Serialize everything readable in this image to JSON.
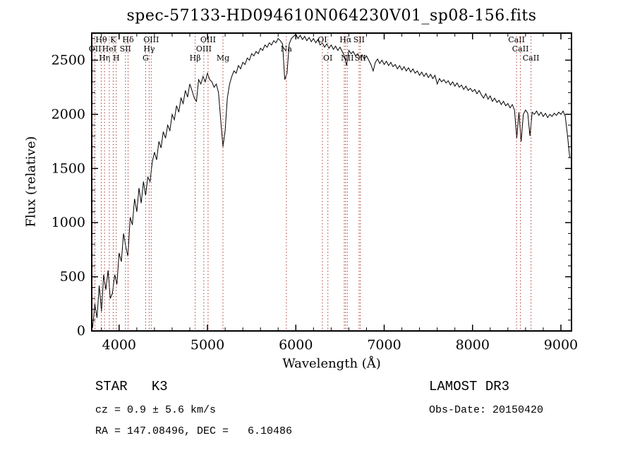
{
  "title": "spec-57133-HD094610N064230V01_sp08-156.fits",
  "footer": {
    "classification": "STAR   K3",
    "survey": "LAMOST DR3",
    "cz": "cz = 0.9 ± 5.6 km/s",
    "obs_date": "Obs-Date: 20150420",
    "ra_dec": "RA = 147.08496, DEC =   6.10486"
  },
  "chart_data": {
    "type": "line",
    "title": "spec-57133-HD094610N064230V01_sp08-156.fits",
    "xlabel": "Wavelength (Å)",
    "ylabel": "Flux (relative)",
    "xlim": [
      3690,
      9120
    ],
    "ylim": [
      0,
      2750
    ],
    "x_ticks": [
      4000,
      5000,
      6000,
      7000,
      8000,
      9000
    ],
    "y_ticks": [
      0,
      500,
      1000,
      1500,
      2000,
      2500
    ],
    "x_minor_step": 200,
    "y_minor_step": 100,
    "grid": false,
    "legend": "none",
    "line_color": "#000000",
    "marker_color": "#aa3939",
    "x_start": 3700,
    "x_step": 25,
    "flux": [
      30,
      250,
      120,
      420,
      180,
      520,
      380,
      560,
      300,
      350,
      520,
      430,
      720,
      640,
      900,
      780,
      690,
      1050,
      980,
      1220,
      1100,
      1320,
      1180,
      1380,
      1250,
      1420,
      1380,
      1560,
      1650,
      1580,
      1750,
      1690,
      1840,
      1780,
      1900,
      1850,
      2000,
      1950,
      2080,
      2020,
      2150,
      2100,
      2220,
      2160,
      2280,
      2220,
      2150,
      2120,
      2320,
      2280,
      2350,
      2300,
      2380,
      2320,
      2300,
      2250,
      2280,
      2200,
      1950,
      1700,
      1850,
      2150,
      2280,
      2350,
      2400,
      2380,
      2450,
      2420,
      2480,
      2460,
      2520,
      2500,
      2560,
      2540,
      2580,
      2560,
      2610,
      2590,
      2640,
      2620,
      2660,
      2640,
      2680,
      2660,
      2700,
      2680,
      2650,
      2320,
      2380,
      2650,
      2700,
      2720,
      2740,
      2700,
      2730,
      2690,
      2720,
      2680,
      2710,
      2670,
      2700,
      2660,
      2690,
      2640,
      2660,
      2620,
      2650,
      2610,
      2640,
      2600,
      2630,
      2590,
      2620,
      2580,
      2540,
      2450,
      2590,
      2560,
      2580,
      2540,
      2560,
      2520,
      2550,
      2510,
      2540,
      2500,
      2460,
      2400,
      2480,
      2510,
      2470,
      2500,
      2460,
      2490,
      2450,
      2480,
      2440,
      2460,
      2420,
      2450,
      2410,
      2440,
      2400,
      2430,
      2390,
      2420,
      2380,
      2400,
      2360,
      2390,
      2350,
      2380,
      2340,
      2370,
      2330,
      2360,
      2280,
      2330,
      2300,
      2320,
      2290,
      2310,
      2270,
      2300,
      2260,
      2290,
      2250,
      2270,
      2230,
      2260,
      2220,
      2240,
      2210,
      2230,
      2190,
      2220,
      2180,
      2150,
      2190,
      2140,
      2170,
      2120,
      2150,
      2110,
      2130,
      2090,
      2120,
      2080,
      2100,
      2060,
      2090,
      2040,
      1780,
      2020,
      1750,
      2000,
      2040,
      2010,
      1800,
      2020,
      2000,
      2030,
      1990,
      2020,
      1980,
      2010,
      1970,
      2000,
      1980,
      2010,
      1990,
      2020,
      2000,
      2030,
      1980,
      1800,
      1600
    ],
    "line_markers": [
      {
        "label": "OII",
        "wavelength": 3727,
        "row": 2
      },
      {
        "label": "Hθ",
        "wavelength": 3798,
        "row": 1
      },
      {
        "label": "Hη",
        "wavelength": 3835,
        "row": 3
      },
      {
        "label": "HeI",
        "wavelength": 3889,
        "row": 2
      },
      {
        "label": "K",
        "wavelength": 3933,
        "row": 1
      },
      {
        "label": "H",
        "wavelength": 3968,
        "row": 3
      },
      {
        "label": "SII",
        "wavelength": 4072,
        "row": 2
      },
      {
        "label": "Hδ",
        "wavelength": 4101,
        "row": 1
      },
      {
        "label": "G",
        "wavelength": 4300,
        "row": 3
      },
      {
        "label": "Hγ",
        "wavelength": 4340,
        "row": 2
      },
      {
        "label": "OIII",
        "wavelength": 4363,
        "row": 1
      },
      {
        "label": "Hβ",
        "wavelength": 4861,
        "row": 3
      },
      {
        "label": "OIII",
        "wavelength": 4959,
        "row": 2
      },
      {
        "label": "OIII",
        "wavelength": 5007,
        "row": 1
      },
      {
        "label": "Mg",
        "wavelength": 5175,
        "row": 3
      },
      {
        "label": "Na",
        "wavelength": 5893,
        "row": 2
      },
      {
        "label": "OI",
        "wavelength": 6300,
        "row": 1
      },
      {
        "label": "OI",
        "wavelength": 6363,
        "row": 3
      },
      {
        "label": "",
        "wavelength": 6548,
        "row": 0
      },
      {
        "label": "Hα",
        "wavelength": 6563,
        "row": 1
      },
      {
        "label": "NII",
        "wavelength": 6583,
        "row": 3
      },
      {
        "label": "SII",
        "wavelength": 6716,
        "row": 1
      },
      {
        "label": "SII",
        "wavelength": 6731,
        "row": 3
      },
      {
        "label": "CaII",
        "wavelength": 8498,
        "row": 1
      },
      {
        "label": "CaII",
        "wavelength": 8542,
        "row": 2
      },
      {
        "label": "CaII",
        "wavelength": 8662,
        "row": 3
      }
    ]
  }
}
